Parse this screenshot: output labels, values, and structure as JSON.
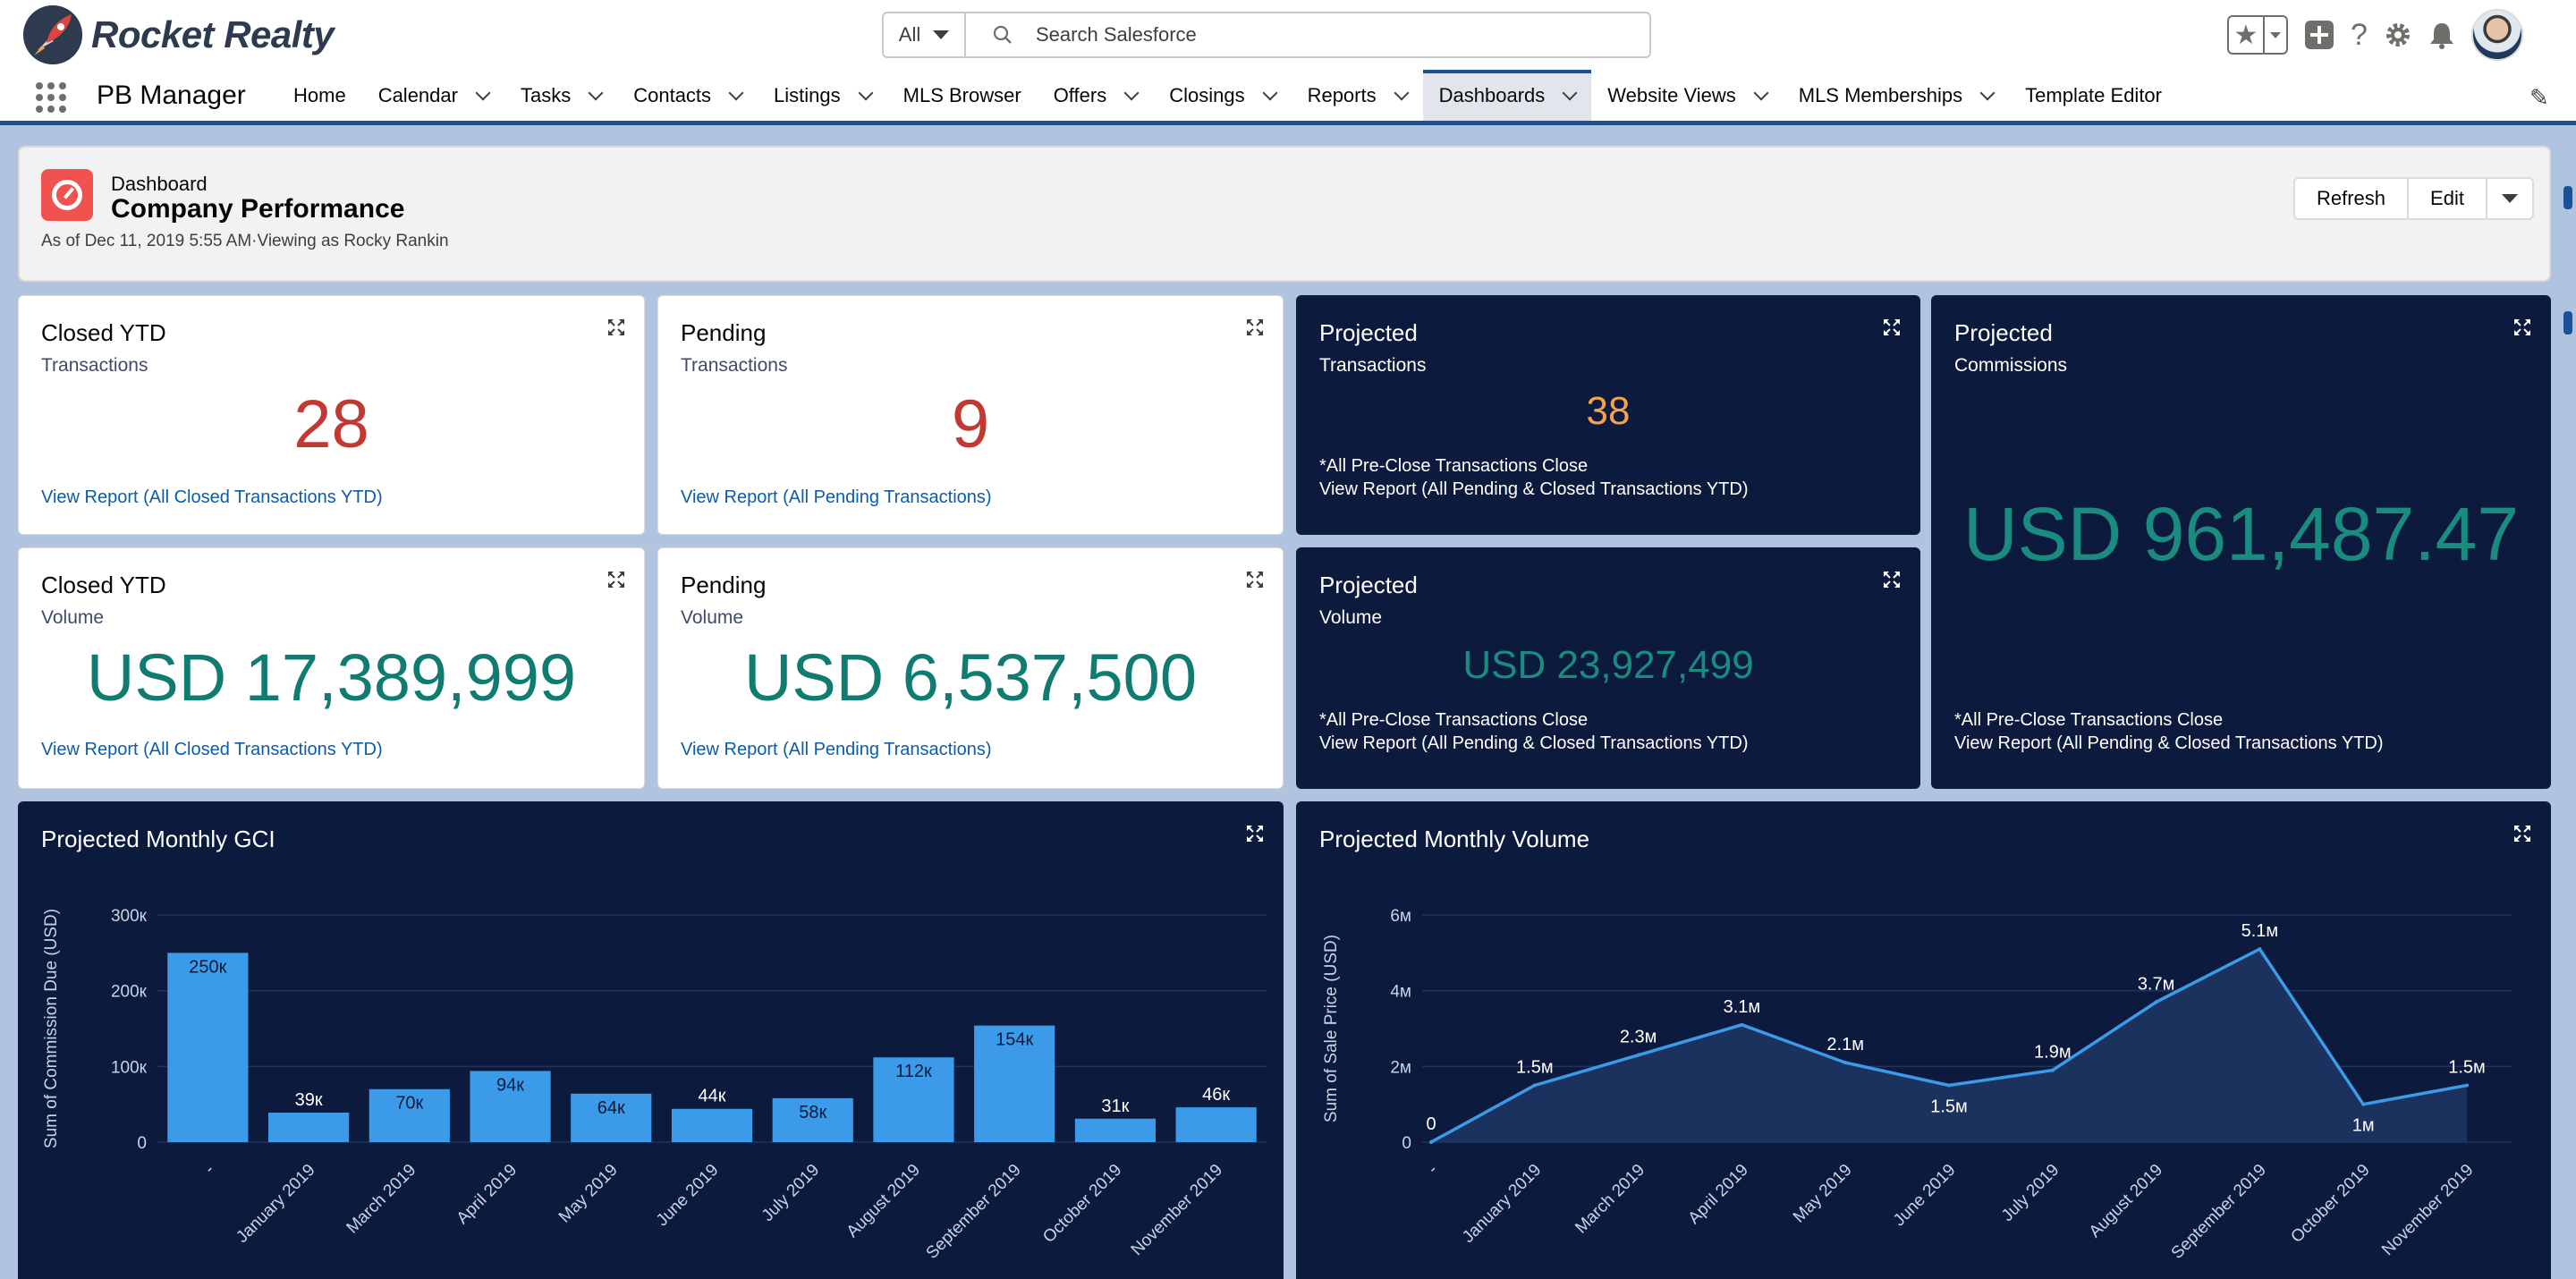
{
  "header": {
    "brand": "Rocket Realty",
    "search_scope": "All",
    "search_placeholder": "Search Salesforce"
  },
  "nav": {
    "app_name": "PB Manager",
    "items": [
      {
        "label": "Home",
        "dropdown": false,
        "active": false
      },
      {
        "label": "Calendar",
        "dropdown": true,
        "active": false
      },
      {
        "label": "Tasks",
        "dropdown": true,
        "active": false
      },
      {
        "label": "Contacts",
        "dropdown": true,
        "active": false
      },
      {
        "label": "Listings",
        "dropdown": true,
        "active": false
      },
      {
        "label": "MLS Browser",
        "dropdown": false,
        "active": false
      },
      {
        "label": "Offers",
        "dropdown": true,
        "active": false
      },
      {
        "label": "Closings",
        "dropdown": true,
        "active": false
      },
      {
        "label": "Reports",
        "dropdown": true,
        "active": false
      },
      {
        "label": "Dashboards",
        "dropdown": true,
        "active": true
      },
      {
        "label": "Website Views",
        "dropdown": true,
        "active": false
      },
      {
        "label": "MLS Memberships",
        "dropdown": true,
        "active": false
      },
      {
        "label": "Template Editor",
        "dropdown": false,
        "active": false
      }
    ]
  },
  "dashboard": {
    "type_label": "Dashboard",
    "title": "Company Performance",
    "as_of": "As of Dec 11, 2019 5:55 AM·Viewing as Rocky Rankin",
    "buttons": {
      "refresh": "Refresh",
      "edit": "Edit"
    }
  },
  "widgets": {
    "closed_tx": {
      "title": "Closed YTD",
      "subtitle": "Transactions",
      "value": "28",
      "link": "View Report (All Closed Transactions YTD)"
    },
    "pending_tx": {
      "title": "Pending",
      "subtitle": "Transactions",
      "value": "9",
      "link": "View Report (All Pending Transactions)"
    },
    "projected_tx": {
      "title": "Projected",
      "subtitle": "Transactions",
      "value": "38",
      "note": "*All Pre-Close Transactions Close",
      "link": "View Report (All Pending & Closed Transactions YTD)"
    },
    "projected_comm": {
      "title": "Projected",
      "subtitle": "Commissions",
      "value": "USD 961,487.47",
      "note": "*All Pre-Close Transactions Close",
      "link": "View Report (All Pending & Closed Transactions YTD)"
    },
    "closed_vol": {
      "title": "Closed YTD",
      "subtitle": "Volume",
      "value": "USD 17,389,999",
      "link": "View Report (All Closed Transactions YTD)"
    },
    "pending_vol": {
      "title": "Pending",
      "subtitle": "Volume",
      "value": "USD 6,537,500",
      "link": "View Report (All Pending Transactions)"
    },
    "projected_vol": {
      "title": "Projected",
      "subtitle": "Volume",
      "value": "USD 23,927,499",
      "note": "*All Pre-Close Transactions Close",
      "link": "View Report (All Pending & Closed Transactions YTD)"
    }
  },
  "colors": {
    "nav_accent": "#1b5297",
    "dark_panel": "#0c1a3e",
    "bar": "#3b9be8",
    "line": "#3b9be8",
    "red": "#c23934",
    "teal": "#107c71",
    "orange": "#f4a24b"
  },
  "chart_data": [
    {
      "type": "bar",
      "title": "Projected Monthly GCI",
      "ylabel": "Sum of Commission Due (USD)",
      "ylim": [
        0,
        300000
      ],
      "yticks": [
        "0",
        "100к",
        "200к",
        "300к"
      ],
      "categories": [
        "-",
        "January 2019",
        "March 2019",
        "April 2019",
        "May 2019",
        "June 2019",
        "July 2019",
        "August 2019",
        "September 2019",
        "October 2019",
        "November 2019"
      ],
      "values": [
        250000,
        39000,
        70000,
        94000,
        64000,
        44000,
        58000,
        112000,
        154000,
        31000,
        46000
      ],
      "data_labels": [
        "250к",
        "39к",
        "70к",
        "94к",
        "64к",
        "44к",
        "58к",
        "112к",
        "154к",
        "31к",
        "46к"
      ],
      "grid": true
    },
    {
      "type": "area",
      "title": "Projected Monthly Volume",
      "ylabel": "Sum of Sale Price (USD)",
      "ylim": [
        0,
        6000000
      ],
      "yticks": [
        "0",
        "2м",
        "4м",
        "6м"
      ],
      "categories": [
        "-",
        "January 2019",
        "March 2019",
        "April 2019",
        "May 2019",
        "June 2019",
        "July 2019",
        "August 2019",
        "September 2019",
        "October 2019",
        "November 2019"
      ],
      "values": [
        0,
        1500000,
        2300000,
        3100000,
        2100000,
        1500000,
        1900000,
        3700000,
        5100000,
        1000000,
        1500000
      ],
      "data_labels": [
        "0",
        "1.5м",
        "2.3м",
        "3.1м",
        "2.1м",
        "1.5м",
        "1.9м",
        "3.7м",
        "5.1м",
        "1м",
        "1.5м"
      ],
      "grid": true
    }
  ]
}
